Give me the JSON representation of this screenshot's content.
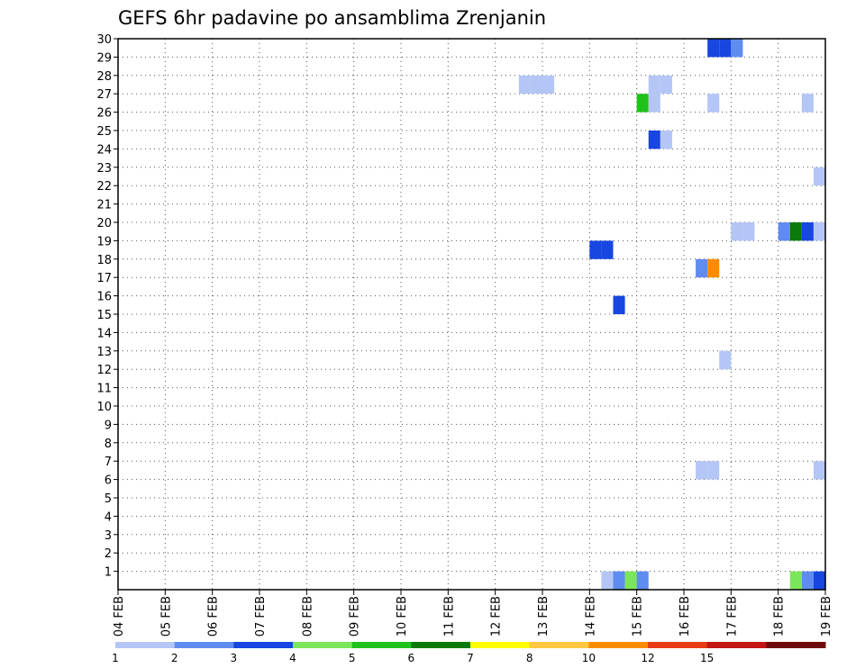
{
  "chart_data": {
    "type": "heatmap",
    "title": "GEFS 6hr padavine po ansamblima Zrenjanin",
    "y_labels": [
      "1",
      "2",
      "3",
      "4",
      "5",
      "6",
      "7",
      "8",
      "9",
      "10",
      "11",
      "12",
      "13",
      "14",
      "15",
      "16",
      "17",
      "18",
      "19",
      "20",
      "21",
      "22",
      "23",
      "24",
      "25",
      "26",
      "27",
      "28",
      "29",
      "30"
    ],
    "x_labels": [
      "04 FEB",
      "05 FEB",
      "06 FEB",
      "07 FEB",
      "08 FEB",
      "09 FEB",
      "10 FEB",
      "11 FEB",
      "12 FEB",
      "13 FEB",
      "14 FEB",
      "15 FEB",
      "16 FEB",
      "17 FEB",
      "18 FEB",
      "19 FEB"
    ],
    "y_range": [
      0,
      30
    ],
    "x_range_days": [
      0,
      15
    ],
    "grid": true,
    "legend_position": "bottom",
    "colorbar": {
      "levels": [
        "1",
        "2",
        "3",
        "4",
        "5",
        "6",
        "7",
        "8",
        "10",
        "12",
        "15",
        "20"
      ],
      "colors": [
        "#b4c6f5",
        "#5f8cf0",
        "#1746e0",
        "#7ce65a",
        "#1fc21a",
        "#0a7a0a",
        "#ffff00",
        "#ffc840",
        "#ff8c00",
        "#e83c14",
        "#c41414",
        "#6e0a0a"
      ]
    },
    "cells": [
      {
        "day": 10.25,
        "member": 0,
        "level": 1
      },
      {
        "day": 10.5,
        "member": 0,
        "level": 2
      },
      {
        "day": 10.75,
        "member": 0,
        "level": 4
      },
      {
        "day": 11.0,
        "member": 0,
        "level": 2
      },
      {
        "day": 14.25,
        "member": 0,
        "level": 4
      },
      {
        "day": 14.5,
        "member": 0,
        "level": 2
      },
      {
        "day": 14.75,
        "member": 0,
        "level": 3
      },
      {
        "day": 12.25,
        "member": 6,
        "level": 1
      },
      {
        "day": 12.5,
        "member": 6,
        "level": 1
      },
      {
        "day": 14.75,
        "member": 6,
        "level": 1
      },
      {
        "day": 12.75,
        "member": 12,
        "level": 1
      },
      {
        "day": 10.5,
        "member": 15,
        "level": 3
      },
      {
        "day": 12.25,
        "member": 17,
        "level": 2
      },
      {
        "day": 12.5,
        "member": 17,
        "level": 9
      },
      {
        "day": 10.0,
        "member": 18,
        "level": 3
      },
      {
        "day": 10.25,
        "member": 18,
        "level": 3
      },
      {
        "day": 13.0,
        "member": 19,
        "level": 1
      },
      {
        "day": 13.25,
        "member": 19,
        "level": 1
      },
      {
        "day": 14.0,
        "member": 19,
        "level": 2
      },
      {
        "day": 14.25,
        "member": 19,
        "level": 6
      },
      {
        "day": 14.5,
        "member": 19,
        "level": 3
      },
      {
        "day": 14.75,
        "member": 19,
        "level": 1
      },
      {
        "day": 14.75,
        "member": 22,
        "level": 1
      },
      {
        "day": 11.25,
        "member": 24,
        "level": 3
      },
      {
        "day": 11.5,
        "member": 24,
        "level": 1
      },
      {
        "day": 11.0,
        "member": 26,
        "level": 5
      },
      {
        "day": 11.25,
        "member": 26,
        "level": 1
      },
      {
        "day": 12.5,
        "member": 26,
        "level": 1
      },
      {
        "day": 14.5,
        "member": 26,
        "level": 1
      },
      {
        "day": 8.5,
        "member": 27,
        "level": 1
      },
      {
        "day": 8.75,
        "member": 27,
        "level": 1
      },
      {
        "day": 9.0,
        "member": 27,
        "level": 1
      },
      {
        "day": 11.25,
        "member": 27,
        "level": 1
      },
      {
        "day": 11.5,
        "member": 27,
        "level": 1
      },
      {
        "day": 12.5,
        "member": 29,
        "level": 3
      },
      {
        "day": 12.75,
        "member": 29,
        "level": 3
      },
      {
        "day": 13.0,
        "member": 29,
        "level": 2
      }
    ]
  }
}
